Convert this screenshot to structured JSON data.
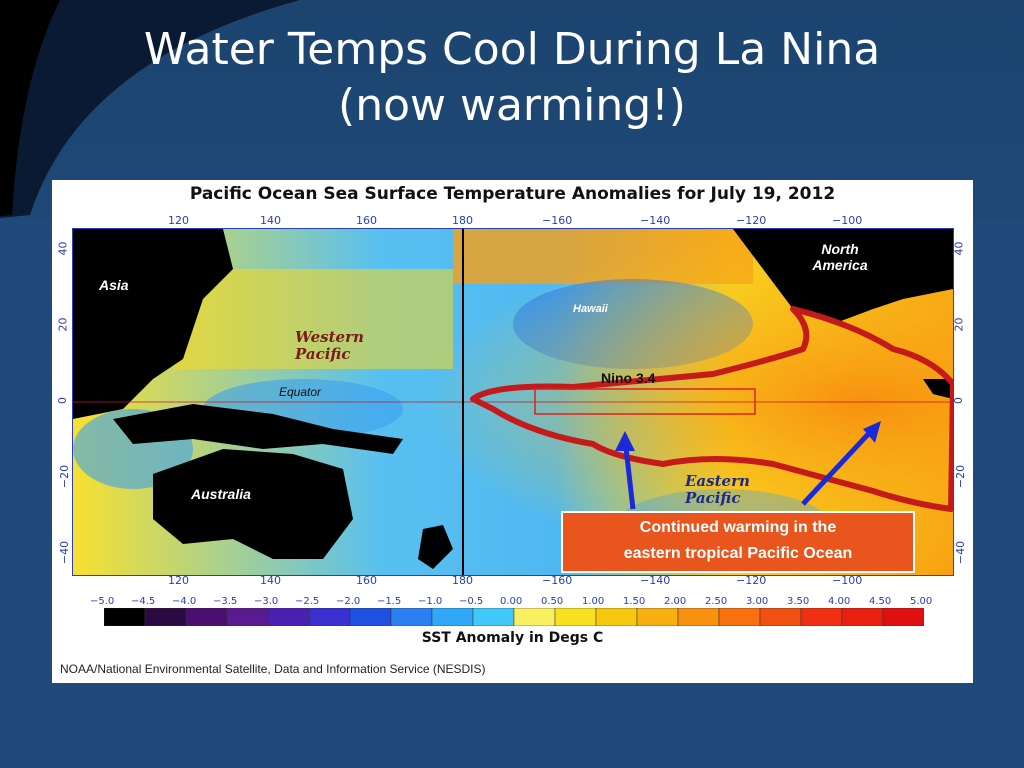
{
  "slide": {
    "title_line1": "Water Temps Cool During La Nina",
    "title_line2": "(now warming!)"
  },
  "figure": {
    "title": "Pacific Ocean Sea Surface Temperature Anomalies for July 19, 2012",
    "top_lon_ticks": [
      "120",
      "140",
      "160",
      "180",
      "−160",
      "−140",
      "−120",
      "−100"
    ],
    "bottom_lon_ticks": [
      "120",
      "140",
      "160",
      "180",
      "−160",
      "−140",
      "−120",
      "−100"
    ],
    "lat_ticks": [
      "40",
      "20",
      "0",
      "−20",
      "−40"
    ],
    "labels": {
      "asia": "Asia",
      "north_america": "North America",
      "australia": "Australia",
      "hawaii": "Hawaii",
      "western_pacific": "Western Pacific",
      "eastern_pacific": "Eastern Pacific",
      "equator": "Equator",
      "nino": "Nino 3.4"
    },
    "callout": {
      "line1": "Continued warming in the",
      "line2": "eastern tropical Pacific Ocean",
      "bg_color": "#e8561e"
    },
    "colorbar": {
      "ticks": [
        "−5.0",
        "−4.5",
        "−4.0",
        "−3.5",
        "−3.0",
        "−2.5",
        "−2.0",
        "−1.5",
        "−1.0",
        "−0.5",
        "0.00",
        "0.50",
        "1.00",
        "1.50",
        "2.00",
        "2.50",
        "3.00",
        "3.50",
        "4.00",
        "4.50",
        "5.00"
      ],
      "colors": [
        "#000000",
        "#2a0a40",
        "#4a1070",
        "#5a1a90",
        "#4a20b0",
        "#3a30d0",
        "#2050e0",
        "#2a80f0",
        "#30a8f8",
        "#40c8f8",
        "#f8f060",
        "#f8e020",
        "#f8c810",
        "#f8b010",
        "#f89010",
        "#f87010",
        "#f05010",
        "#f03010",
        "#e82010",
        "#e01010"
      ],
      "label": "SST Anomaly in Degs C"
    },
    "source": "NOAA/National Environmental Satellite, Data and Information Service (NESDIS)",
    "highlight_color": "#c41a1a"
  }
}
